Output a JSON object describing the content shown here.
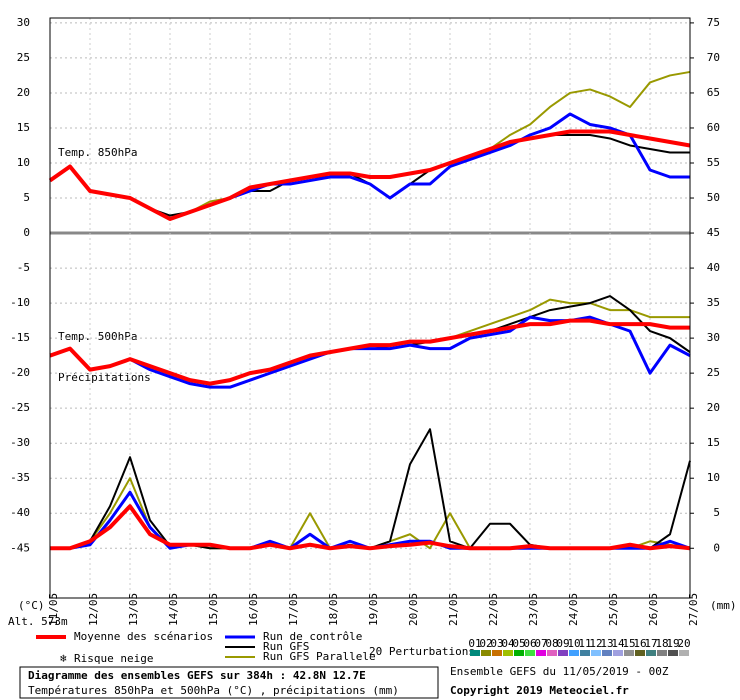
{
  "chart_data": {
    "type": "line",
    "labels": {
      "t850": "Temp. 850hPa",
      "t500": "Temp. 500hPa",
      "precip": "Précipitations",
      "alt": "Alt. 573m",
      "yunit": "(°C)",
      "y2unit": "(mm)"
    },
    "x": [
      0,
      0.5,
      1,
      1.5,
      2,
      2.5,
      3,
      3.5,
      4,
      4.5,
      5,
      5.5,
      6,
      6.5,
      7,
      7.5,
      8,
      8.5,
      9,
      9.5,
      10,
      10.5,
      11,
      11.5,
      12,
      12.5,
      13,
      13.5,
      14,
      14.5,
      15,
      15.5,
      16
    ],
    "xlim": [
      0,
      16
    ],
    "xticks": [
      {
        "value": 0,
        "label": "11/05"
      },
      {
        "value": 1,
        "label": "12/05"
      },
      {
        "value": 2,
        "label": "13/05"
      },
      {
        "value": 3,
        "label": "14/05"
      },
      {
        "value": 4,
        "label": "15/05"
      },
      {
        "value": 5,
        "label": "16/05"
      },
      {
        "value": 6,
        "label": "17/05"
      },
      {
        "value": 7,
        "label": "18/05"
      },
      {
        "value": 8,
        "label": "19/05"
      },
      {
        "value": 9,
        "label": "20/05"
      },
      {
        "value": 10,
        "label": "21/05"
      },
      {
        "value": 11,
        "label": "22/05"
      },
      {
        "value": 12,
        "label": "23/05"
      },
      {
        "value": 13,
        "label": "24/05"
      },
      {
        "value": 14,
        "label": "25/05"
      },
      {
        "value": 15,
        "label": "26/05"
      },
      {
        "value": 16,
        "label": "27/05"
      }
    ],
    "ylim": [
      -52.1,
      30.7
    ],
    "yticks": [
      -45,
      -40,
      -35,
      -30,
      -25,
      -20,
      -15,
      -10,
      -5,
      0,
      5,
      10,
      15,
      20,
      25,
      30
    ],
    "y2lim": [
      -7.1,
      75.7
    ],
    "y2ticks": [
      0,
      5,
      10,
      15,
      20,
      25,
      30,
      35,
      40,
      45,
      50,
      55,
      60,
      65,
      70,
      75
    ],
    "grid": true,
    "series": [
      {
        "name": "Run GFS Parallele",
        "color": "#999900",
        "width": 2,
        "t850": [
          7.5,
          9.5,
          6,
          5.5,
          5,
          3.5,
          2,
          3,
          4.5,
          5,
          6,
          7,
          7.5,
          8,
          8,
          8.5,
          8,
          8,
          8.5,
          9,
          10,
          11,
          12,
          14,
          15.5,
          18,
          20,
          20.5,
          19.5,
          18,
          21.5,
          22.5,
          23
        ],
        "t500": [
          -17.5,
          -16.5,
          -19.5,
          -19,
          -18,
          -19,
          -20,
          -21,
          -21.5,
          -21,
          -20,
          -19.5,
          -18.5,
          -17.5,
          -17,
          -16.5,
          -16,
          -16,
          -15.5,
          -15.5,
          -15,
          -14,
          -13,
          -12,
          -11,
          -9.5,
          -10,
          -10,
          -11,
          -11,
          -12,
          -12,
          -12
        ],
        "precip": [
          0,
          0,
          1,
          5,
          10,
          3,
          0.3,
          0.5,
          0,
          0,
          0,
          0.5,
          0,
          5,
          0,
          1,
          0,
          1,
          2,
          0,
          5,
          0,
          0,
          0,
          0,
          0,
          0,
          0,
          0,
          0,
          1,
          0.5,
          0
        ]
      },
      {
        "name": "Run GFS",
        "color": "#000000",
        "width": 2,
        "t850": [
          7.5,
          9.5,
          6,
          5.5,
          5,
          3.5,
          2.5,
          3,
          4,
          5,
          6,
          6,
          7.5,
          8,
          8,
          8.5,
          7,
          5,
          7,
          9,
          10,
          11,
          11.5,
          13,
          13.5,
          14,
          14,
          14,
          13.5,
          12.5,
          12,
          11.5,
          11.5
        ],
        "t500": [
          -17.5,
          -16.5,
          -19.5,
          -19,
          -18,
          -19,
          -20,
          -21,
          -21.5,
          -21,
          -20,
          -19.5,
          -18.5,
          -17.5,
          -17,
          -16.5,
          -16,
          -16.5,
          -16,
          -15.5,
          -15,
          -14.5,
          -14,
          -13,
          -12,
          -11,
          -10.5,
          -10,
          -9,
          -11,
          -14,
          -15,
          -17
        ],
        "precip": [
          0,
          0,
          1,
          6,
          13,
          4,
          0.3,
          0.5,
          0,
          0,
          0,
          0.5,
          0,
          0.5,
          0,
          0.5,
          0,
          1,
          12,
          17,
          1,
          0,
          3.5,
          3.5,
          0.5,
          0,
          0,
          0,
          0,
          0,
          0,
          2,
          12.5
        ]
      },
      {
        "name": "Run de contrôle",
        "color": "#0000ff",
        "width": 3,
        "t850": [
          7.5,
          9.5,
          6,
          5.5,
          5,
          3.5,
          2,
          3,
          4,
          5,
          6,
          7,
          7,
          7.5,
          8,
          8,
          7,
          5,
          7,
          7,
          9.5,
          10.5,
          11.5,
          12.5,
          14,
          15,
          17,
          15.5,
          15,
          14,
          9,
          8,
          8
        ],
        "t500": [
          -17.5,
          -16.5,
          -19.5,
          -19,
          -18,
          -19.5,
          -20.5,
          -21.5,
          -22,
          -22,
          -21,
          -20,
          -19,
          -18,
          -17,
          -16.5,
          -16.5,
          -16.5,
          -16,
          -16.5,
          -16.5,
          -15,
          -14.5,
          -14,
          -12,
          -12.5,
          -12.5,
          -12,
          -13,
          -14,
          -20,
          -16,
          -17.5
        ],
        "precip": [
          0,
          0,
          0.5,
          4,
          8,
          3,
          0,
          0.5,
          0.5,
          0,
          0,
          1,
          0,
          2,
          0,
          1,
          0,
          0.5,
          1,
          1,
          0,
          0,
          0,
          0,
          0,
          0,
          0,
          0,
          0,
          0,
          0,
          1,
          0
        ]
      },
      {
        "name": "Moyenne des scénarios",
        "color": "#ff0000",
        "width": 4,
        "t850": [
          7.5,
          9.5,
          6,
          5.5,
          5,
          3.5,
          2,
          3,
          4,
          5,
          6.5,
          7,
          7.5,
          8,
          8.5,
          8.5,
          8,
          8,
          8.5,
          9,
          10,
          11,
          12,
          13,
          13.5,
          14,
          14.5,
          14.5,
          14.5,
          14,
          13.5,
          13,
          12.5
        ],
        "t500": [
          -17.5,
          -16.5,
          -19.5,
          -19,
          -18,
          -19,
          -20,
          -21,
          -21.5,
          -21,
          -20,
          -19.5,
          -18.5,
          -17.5,
          -17,
          -16.5,
          -16,
          -16,
          -15.5,
          -15.5,
          -15,
          -14.5,
          -14,
          -13.5,
          -13,
          -13,
          -12.5,
          -12.5,
          -13,
          -13,
          -13,
          -13.5,
          -13.5
        ],
        "precip": [
          0,
          0,
          1,
          3,
          6,
          2,
          0.5,
          0.5,
          0.5,
          0,
          0,
          0.5,
          0,
          0.5,
          0,
          0.3,
          0,
          0.3,
          0.5,
          0.8,
          0.3,
          0,
          0,
          0,
          0.3,
          0,
          0,
          0,
          0,
          0.5,
          0,
          0.3,
          0
        ]
      }
    ],
    "snow_label": "Risque neige",
    "perturbations_label": "20 Perturbations",
    "perturbations": [
      {
        "label": "01",
        "color": "#00897b"
      },
      {
        "label": "02",
        "color": "#8a8a00"
      },
      {
        "label": "03",
        "color": "#c87000"
      },
      {
        "label": "04",
        "color": "#a0c000"
      },
      {
        "label": "05",
        "color": "#00b000"
      },
      {
        "label": "06",
        "color": "#40e040"
      },
      {
        "label": "07",
        "color": "#e000e0"
      },
      {
        "label": "08",
        "color": "#e060c0"
      },
      {
        "label": "09",
        "color": "#8040c0"
      },
      {
        "label": "10",
        "color": "#40a0ff"
      },
      {
        "label": "11",
        "color": "#4080a0"
      },
      {
        "label": "12",
        "color": "#80c0ff"
      },
      {
        "label": "13",
        "color": "#6080c0"
      },
      {
        "label": "14",
        "color": "#a0a0e0"
      },
      {
        "label": "15",
        "color": "#909090"
      },
      {
        "label": "16",
        "color": "#606020"
      },
      {
        "label": "17",
        "color": "#408080"
      },
      {
        "label": "18",
        "color": "#808080"
      },
      {
        "label": "19",
        "color": "#505050"
      },
      {
        "label": "20",
        "color": "#b0b0b0"
      }
    ],
    "footer": {
      "title": "Diagramme des ensembles GEFS sur 384h : 42.8N 12.7E",
      "subtitle": "Températures 850hPa et 500hPa (°C) , précipitations (mm)",
      "run": "Ensemble GEFS du 11/05/2019 - 00Z",
      "copyright": "Copyright 2019 Meteociel.fr"
    }
  }
}
